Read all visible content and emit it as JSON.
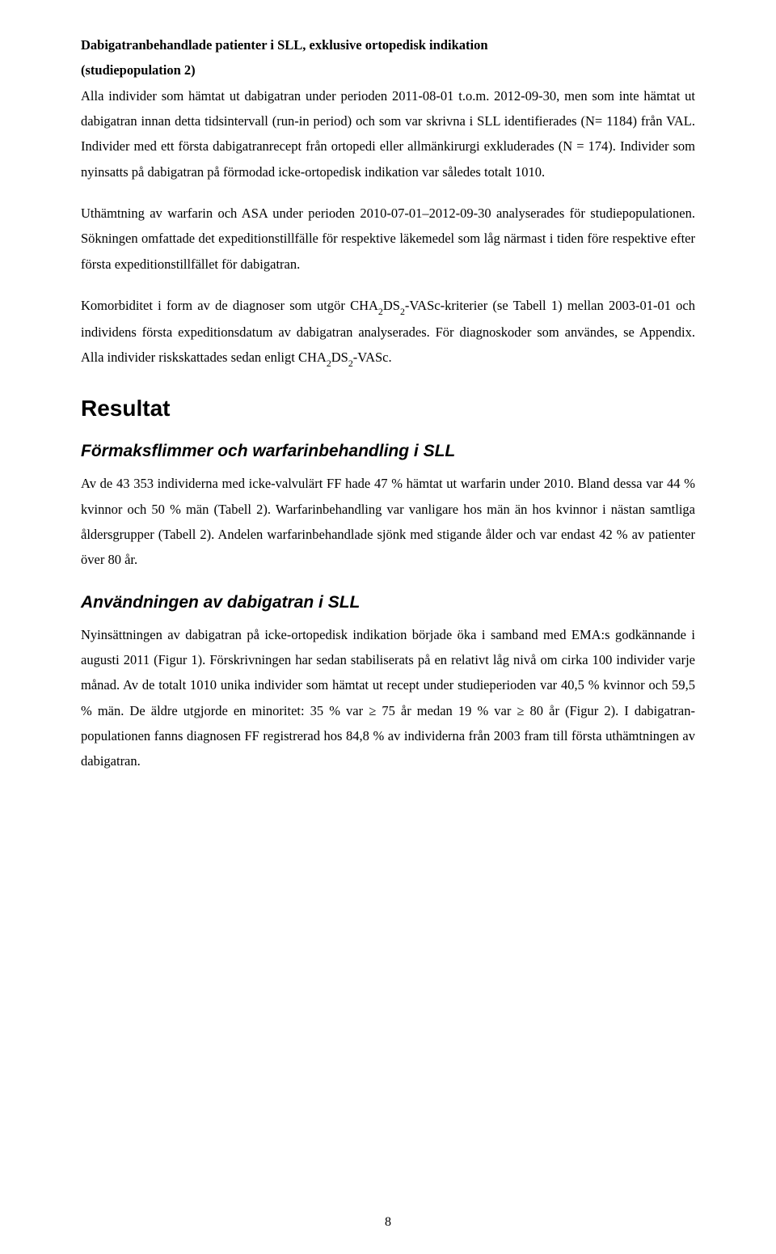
{
  "doc": {
    "section_title_line1": "Dabigatranbehandlade patienter i SLL, exklusive ortopedisk indikation",
    "section_title_line2": "(studiepopulation 2)",
    "para1": "Alla individer som hämtat ut dabigatran under perioden 2011-08-01 t.o.m. 2012-09-30, men som inte hämtat ut dabigatran innan detta tidsintervall (run-in period) och som var skrivna i SLL identifierades (N= 1184) från VAL. Individer med ett första dabigatranrecept från ortopedi eller allmänkirurgi exkluderades (N = 174). Individer som nyinsatts på dabigatran på förmodad icke-ortopedisk indikation var således totalt 1010.",
    "para2": "Uthämtning av warfarin och ASA under perioden 2010-07-01–2012-09-30 analyserades för studiepopulationen. Sökningen omfattade det expeditionstillfälle för respektive läkemedel som låg närmast i tiden före respektive efter första expeditionstillfället för dabigatran.",
    "para3_a": "Komorbiditet i form av de diagnoser som utgör CHA",
    "para3_b": "DS",
    "para3_c": "-VASc-kriterier (se Tabell 1) mellan 2003-01-01 och individens första expeditionsdatum av dabigatran analyserades. För diagnoskoder som användes, se Appendix. Alla individer riskskattades sedan enligt CHA",
    "para3_d": "DS",
    "para3_e": "-VASc.",
    "h1": "Resultat",
    "h2_a": "Förmaksflimmer och warfarinbehandling i SLL",
    "para4": "Av de 43 353 individerna med icke-valvulärt FF hade 47 % hämtat ut warfarin under 2010. Bland dessa var 44 % kvinnor och 50 % män (Tabell 2). Warfarinbehandling var vanligare hos män än hos kvinnor i nästan samtliga åldersgrupper (Tabell 2). Andelen warfarinbehandlade sjönk med stigande ålder och var endast 42 % av patienter över 80 år.",
    "h2_b": "Användningen av dabigatran i SLL",
    "para5": "Nyinsättningen av dabigatran på icke-ortopedisk indikation började öka i samband med EMA:s godkännande i augusti 2011 (Figur 1). Förskrivningen har sedan stabiliserats på en relativt låg nivå om cirka 100 individer varje månad. Av de totalt 1010 unika individer som hämtat ut recept under studieperioden var 40,5 % kvinnor och 59,5 % män. De äldre utgjorde en minoritet: 35 % var ≥ 75 år medan 19 % var ≥ 80 år (Figur 2). I dabigatran-populationen fanns diagnosen FF registrerad hos 84,8 % av individerna från 2003 fram till första uthämtningen av dabigatran.",
    "sub_2": "2",
    "page_number": "8"
  }
}
